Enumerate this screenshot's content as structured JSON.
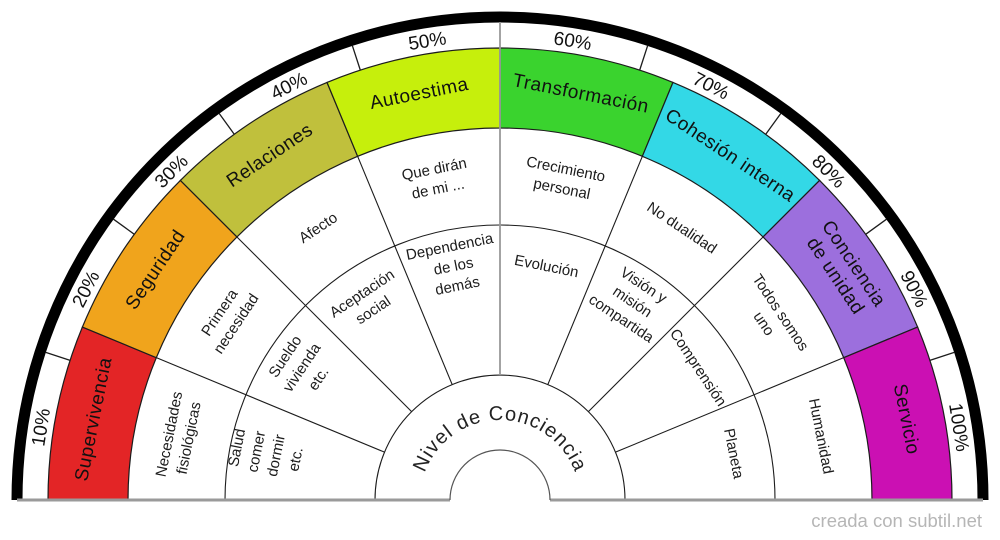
{
  "watermark": "creada con subtil.net",
  "chart_data": {
    "type": "semicircular-dial",
    "center_label": "Nivel de Conciencia",
    "scale_ticks": [
      "10%",
      "20%",
      "30%",
      "40%",
      "50%",
      "60%",
      "70%",
      "80%",
      "90%",
      "100%"
    ],
    "scale_range": [
      0,
      100
    ],
    "segments": [
      {
        "name": "Supervivencia",
        "slug": "supervivencia",
        "color": "#e32526",
        "name_lines": [
          "Supervivencia"
        ],
        "middle_label": "Necesidades fisiológicas",
        "middle_lines": [
          "Necesidades",
          "fisiológicas"
        ],
        "inner_label": "Salud comer dormir etc.",
        "inner_lines": [
          "Salud",
          "comer",
          "dormir",
          "etc."
        ]
      },
      {
        "name": "Seguridad",
        "slug": "seguridad",
        "color": "#f0a41c",
        "name_lines": [
          "Seguridad"
        ],
        "middle_label": "Primera necesidad",
        "middle_lines": [
          "Primera",
          "necesidad"
        ],
        "inner_label": "Sueldo vivienda etc.",
        "inner_lines": [
          "Sueldo",
          "vivienda",
          "etc."
        ]
      },
      {
        "name": "Relaciones",
        "slug": "relaciones",
        "color": "#c0c03c",
        "name_lines": [
          "Relaciones"
        ],
        "middle_label": "Afecto",
        "middle_lines": [
          "Afecto"
        ],
        "inner_label": "Aceptación social",
        "inner_lines": [
          "Aceptación",
          "social"
        ]
      },
      {
        "name": "Autoestima",
        "slug": "autoestima",
        "color": "#c6ef0c",
        "name_lines": [
          "Autoestima"
        ],
        "middle_label": "Que dirán de mi ...",
        "middle_lines": [
          "Que dirán",
          "de mi ..."
        ],
        "inner_label": "Dependencia de los demás",
        "inner_lines": [
          "Dependencia",
          "de los",
          "demás"
        ]
      },
      {
        "name": "Transformación",
        "slug": "transformacion",
        "color": "#3ad32e",
        "name_lines": [
          "Transformación"
        ],
        "middle_label": "Crecimiento personal",
        "middle_lines": [
          "Crecimiento",
          "personal"
        ],
        "inner_label": "Evolución",
        "inner_lines": [
          "Evolución"
        ]
      },
      {
        "name": "Cohesión interna",
        "slug": "cohesion-interna",
        "color": "#33d8e6",
        "name_lines": [
          "Cohesión interna"
        ],
        "middle_label": "No dualidad",
        "middle_lines": [
          "No dualidad"
        ],
        "inner_label": "Visión y misión compartida",
        "inner_lines": [
          "Visión y",
          "misión",
          "compartida"
        ]
      },
      {
        "name": "Conciencia de unidad",
        "slug": "conciencia-de-unidad",
        "color": "#9c6fdd",
        "name_lines": [
          "Conciencia",
          "de unidad"
        ],
        "middle_label": "Todos somos uno",
        "middle_lines": [
          "Todos somos",
          "uno"
        ],
        "inner_label": "Comprensión",
        "inner_lines": [
          "Comprensión"
        ]
      },
      {
        "name": "Servicio",
        "slug": "servicio",
        "color": "#cb10b3",
        "name_lines": [
          "Servicio"
        ],
        "middle_label": "Humanidad",
        "middle_lines": [
          "Humanidad"
        ],
        "inner_label": "Planeta",
        "inner_lines": [
          "Planeta"
        ]
      }
    ],
    "colors": {
      "outer_arc": "#000000",
      "baseline": "#9a9a9a",
      "grid_line": "#1c1c1c",
      "center_divider": "#999999",
      "hole_outline": "#555555",
      "text": "#111111",
      "watermark": "#b6b6b6",
      "background": "#ffffff"
    }
  }
}
